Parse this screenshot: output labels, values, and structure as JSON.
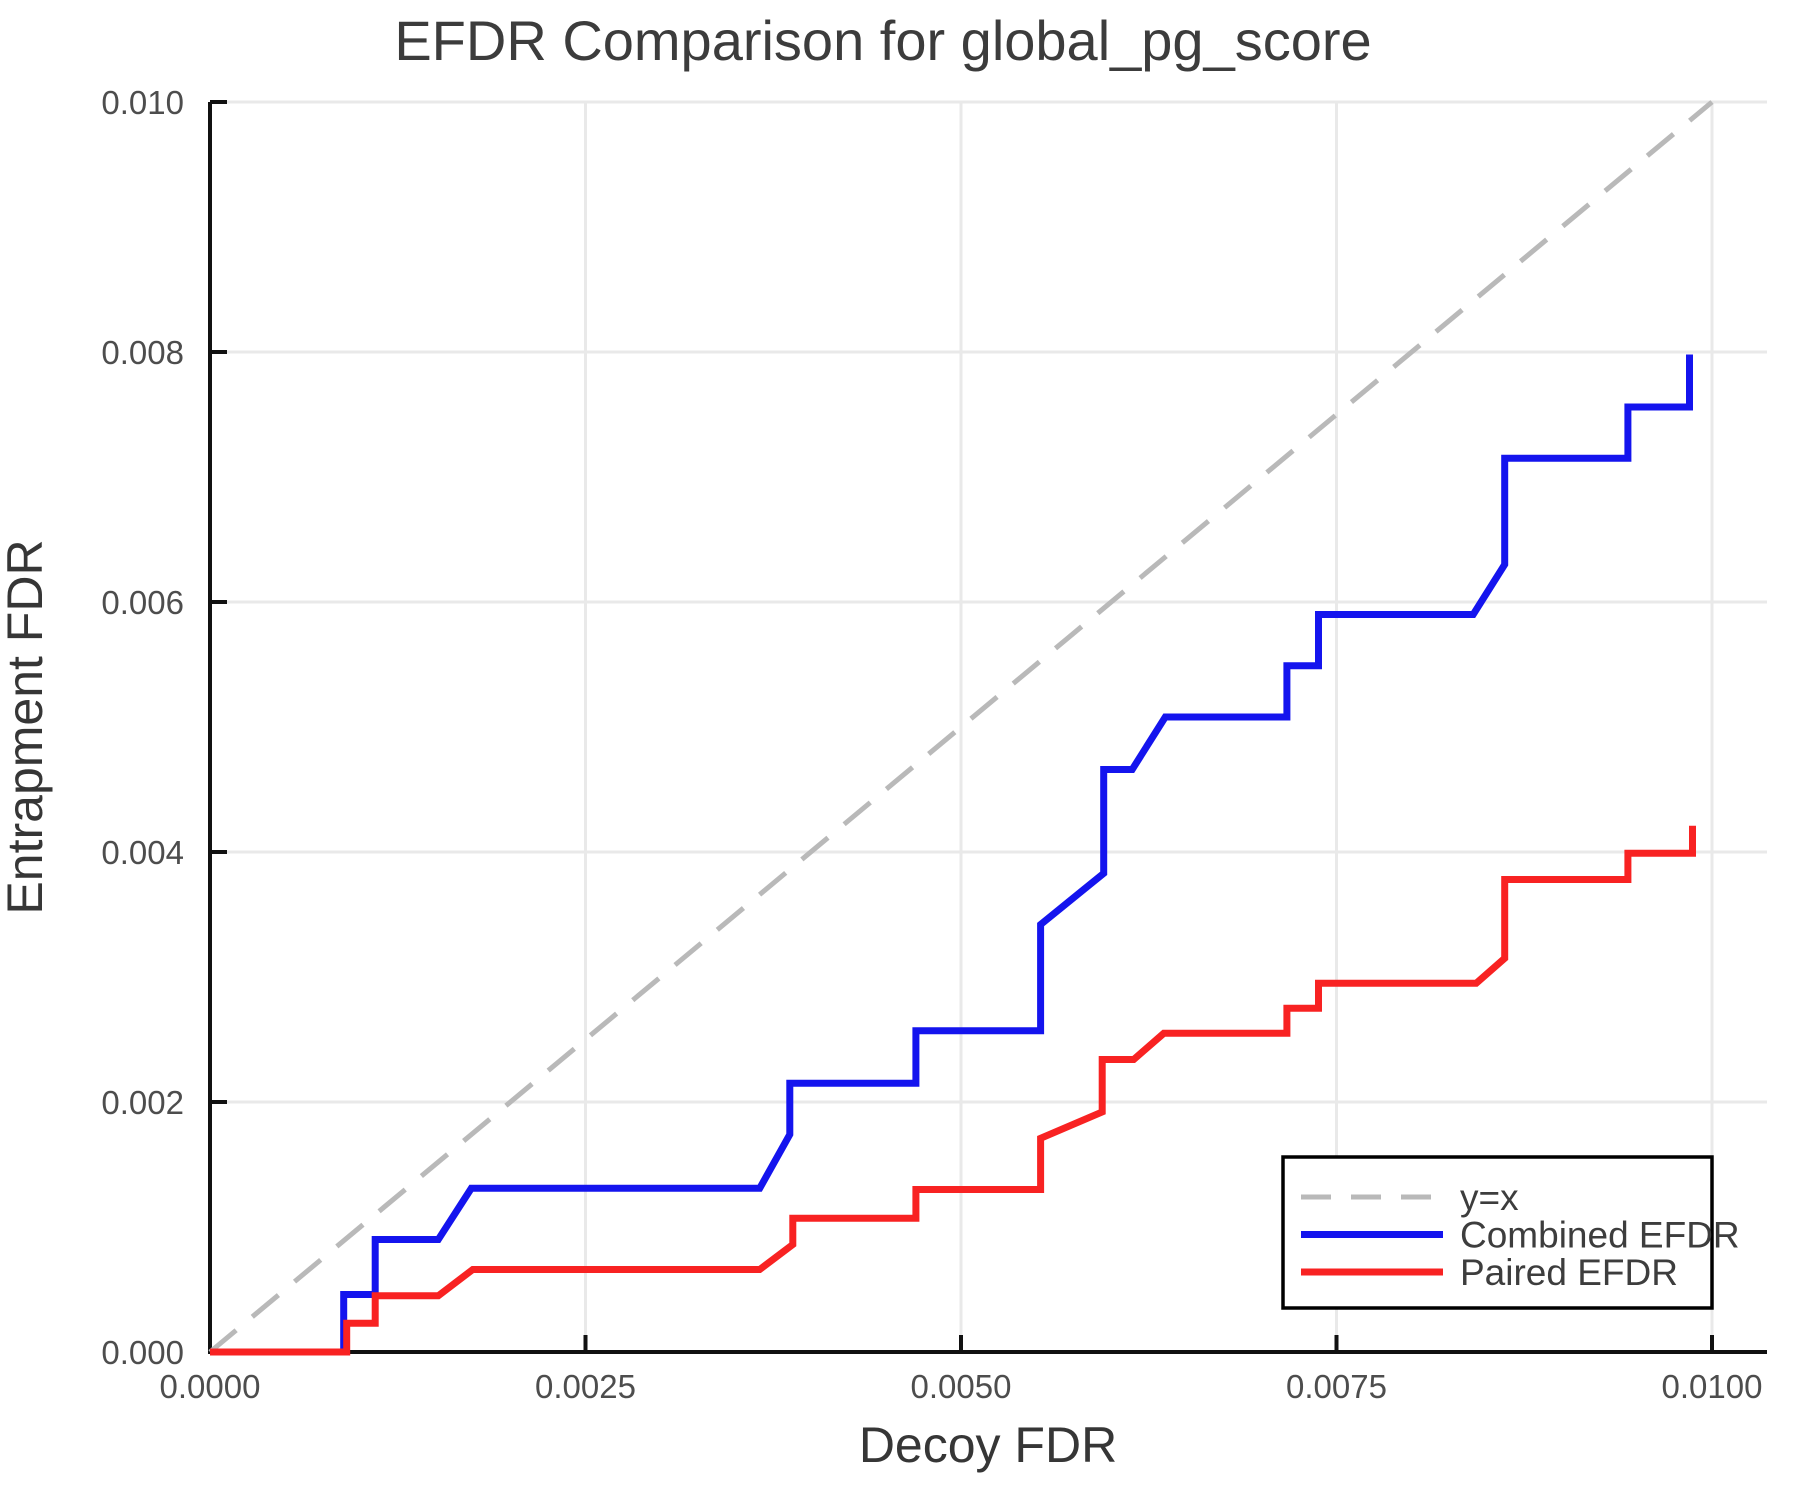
{
  "chart_data": {
    "type": "line",
    "title": "EFDR Comparison for global_pg_score",
    "xlabel": "Decoy FDR",
    "ylabel": "Entrapment FDR",
    "xlim": [
      0.0,
      0.010366
    ],
    "ylim": [
      0.0,
      0.01
    ],
    "grid": true,
    "grid_color": "#e9e9e9",
    "axis_color": "#111111",
    "x_ticks": [
      0.0,
      0.0025,
      0.005,
      0.0075,
      0.01
    ],
    "x_tick_labels": [
      "0.0000",
      "0.0025",
      "0.0050",
      "0.0075",
      "0.0100"
    ],
    "y_ticks": [
      0.0,
      0.002,
      0.004,
      0.006,
      0.008,
      0.01
    ],
    "y_tick_labels": [
      "0.000",
      "0.002",
      "0.004",
      "0.006",
      "0.008",
      "0.010"
    ],
    "legend_position": "bottom-right",
    "legend": {
      "entries": [
        {
          "label": "y=x",
          "color": "#b9b9b9",
          "dashed": true
        },
        {
          "label": "Combined EFDR",
          "color": "#1414ee",
          "dashed": false
        },
        {
          "label": "Paired EFDR",
          "color": "#f82222",
          "dashed": false
        }
      ]
    },
    "reference_line": {
      "name": "y=x",
      "color": "#b9b9b9",
      "dashed": true,
      "points": [
        [
          0.0,
          0.0
        ],
        [
          0.01,
          0.01
        ]
      ]
    },
    "series": [
      {
        "name": "Combined EFDR",
        "color": "#1414ee",
        "points": [
          [
            0.0,
            0.0
          ],
          [
            0.00089,
            0.0
          ],
          [
            0.00089,
            0.00046
          ],
          [
            0.0011,
            0.00046
          ],
          [
            0.0011,
            0.0009
          ],
          [
            0.00152,
            0.0009
          ],
          [
            0.00174,
            0.00131
          ],
          [
            0.00366,
            0.00131
          ],
          [
            0.00386,
            0.00174
          ],
          [
            0.00386,
            0.00215
          ],
          [
            0.0047,
            0.00215
          ],
          [
            0.0047,
            0.00257
          ],
          [
            0.00553,
            0.00257
          ],
          [
            0.00553,
            0.00342
          ],
          [
            0.00595,
            0.00383
          ],
          [
            0.00595,
            0.00466
          ],
          [
            0.00614,
            0.00466
          ],
          [
            0.00636,
            0.00508
          ],
          [
            0.00717,
            0.00508
          ],
          [
            0.00717,
            0.00549
          ],
          [
            0.00738,
            0.00549
          ],
          [
            0.00738,
            0.0059
          ],
          [
            0.00841,
            0.0059
          ],
          [
            0.00862,
            0.0063
          ],
          [
            0.00862,
            0.00715
          ],
          [
            0.00944,
            0.00715
          ],
          [
            0.00944,
            0.00756
          ],
          [
            0.00985,
            0.00756
          ],
          [
            0.00985,
            0.00798
          ]
        ]
      },
      {
        "name": "Paired EFDR",
        "color": "#f82222",
        "points": [
          [
            0.0,
            0.0
          ],
          [
            0.00091,
            0.0
          ],
          [
            0.00091,
            0.00023
          ],
          [
            0.0011,
            0.00023
          ],
          [
            0.0011,
            0.00045
          ],
          [
            0.00152,
            0.00045
          ],
          [
            0.00175,
            0.00066
          ],
          [
            0.00366,
            0.00066
          ],
          [
            0.00388,
            0.00086
          ],
          [
            0.00388,
            0.00107
          ],
          [
            0.0047,
            0.00107
          ],
          [
            0.0047,
            0.0013
          ],
          [
            0.00553,
            0.0013
          ],
          [
            0.00553,
            0.00171
          ],
          [
            0.00594,
            0.00192
          ],
          [
            0.00594,
            0.00234
          ],
          [
            0.00615,
            0.00234
          ],
          [
            0.00635,
            0.00255
          ],
          [
            0.00717,
            0.00255
          ],
          [
            0.00717,
            0.00275
          ],
          [
            0.00738,
            0.00275
          ],
          [
            0.00738,
            0.00295
          ],
          [
            0.00843,
            0.00295
          ],
          [
            0.00862,
            0.00315
          ],
          [
            0.00862,
            0.00378
          ],
          [
            0.00944,
            0.00378
          ],
          [
            0.00944,
            0.00399
          ],
          [
            0.00987,
            0.00399
          ],
          [
            0.00987,
            0.00421
          ]
        ]
      }
    ]
  }
}
